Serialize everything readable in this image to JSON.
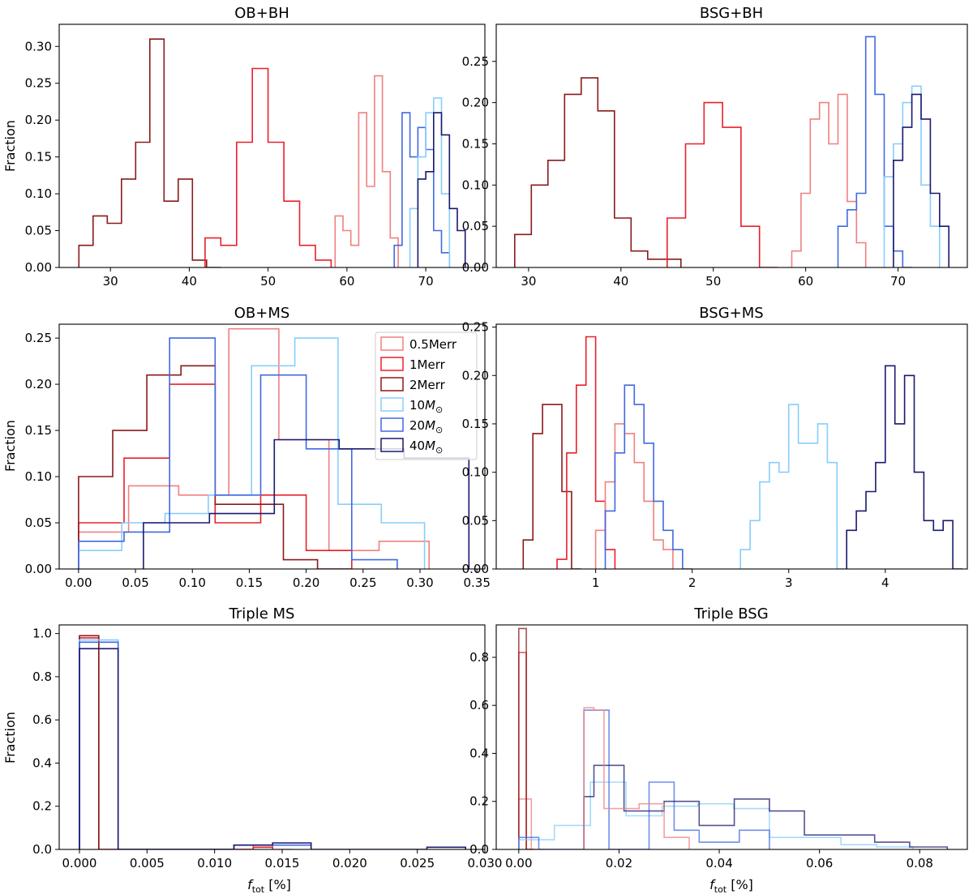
{
  "series_styles": [
    {
      "key": "m05",
      "name": "0.5Merr",
      "color": "#f08080",
      "opacity": 1.0
    },
    {
      "key": "m1",
      "name": "1Merr",
      "color": "#e8202a",
      "opacity": 1.0
    },
    {
      "key": "m2",
      "name": "2Merr",
      "color": "#8b1a1a",
      "opacity": 1.0
    },
    {
      "key": "s10",
      "name": "10",
      "color": "#87cefa",
      "opacity": 1.0
    },
    {
      "key": "s20",
      "name": "20",
      "color": "#4169e1",
      "opacity": 1.0
    },
    {
      "key": "s40",
      "name": "40",
      "color": "#191970",
      "opacity": 1.0
    }
  ],
  "legend": {
    "entries": [
      {
        "key": "m05",
        "main": "0.5Merr",
        "unit": ""
      },
      {
        "key": "m1",
        "main": "1Merr",
        "unit": ""
      },
      {
        "key": "m2",
        "main": "2Merr",
        "unit": ""
      },
      {
        "key": "s10",
        "main": "10",
        "unit": "M"
      },
      {
        "key": "s20",
        "main": "20",
        "unit": "M"
      },
      {
        "key": "s40",
        "main": "40",
        "unit": "M"
      }
    ],
    "unit_subscript": "⊙",
    "placement": "upper-right of OB+MS"
  },
  "chart_data": [
    {
      "type": "histogram-step",
      "title": "OB+BH",
      "ylabel": "Fraction",
      "xlabel": "",
      "xlim": [
        23.5,
        77.5
      ],
      "ylim": [
        0,
        0.33
      ],
      "xticks": [
        30,
        40,
        50,
        60,
        70
      ],
      "yticks": [
        0.0,
        0.05,
        0.1,
        0.15,
        0.2,
        0.25,
        0.3
      ],
      "ytick_labels": [
        "0.00",
        "0.05",
        "0.10",
        "0.15",
        "0.20",
        "0.25",
        "0.30"
      ],
      "xtick_labels": [
        "30",
        "40",
        "50",
        "60",
        "70"
      ],
      "series": [
        {
          "key": "m2",
          "edges": [
            26,
            27.8,
            29.6,
            31.4,
            33.2,
            35,
            36.8,
            38.6,
            40.4,
            42.2,
            44
          ],
          "values": [
            0.03,
            0.07,
            0.06,
            0.12,
            0.17,
            0.31,
            0.09,
            0.12,
            0.01,
            0.0
          ]
        },
        {
          "key": "m1",
          "edges": [
            42,
            44,
            46,
            48,
            50,
            52,
            54,
            56,
            58
          ],
          "values": [
            0.04,
            0.03,
            0.17,
            0.27,
            0.17,
            0.09,
            0.03,
            0.01
          ]
        },
        {
          "key": "m05",
          "edges": [
            58.5,
            59.5,
            60.5,
            61.5,
            62.5,
            63.5,
            64.5,
            65.5,
            66.5
          ],
          "values": [
            0.07,
            0.05,
            0.03,
            0.21,
            0.11,
            0.26,
            0.13,
            0.04
          ]
        },
        {
          "key": "s20",
          "edges": [
            66,
            67,
            68,
            69,
            70,
            71,
            72,
            73
          ],
          "values": [
            0.03,
            0.21,
            0.15,
            0.19,
            0.16,
            0.05,
            0.02
          ]
        },
        {
          "key": "s10",
          "edges": [
            68,
            69,
            70,
            71,
            72,
            73
          ],
          "values": [
            0.08,
            0.15,
            0.21,
            0.23,
            0.1
          ]
        },
        {
          "key": "s40",
          "edges": [
            69,
            70,
            71,
            72,
            73,
            74,
            75
          ],
          "values": [
            0.12,
            0.13,
            0.21,
            0.18,
            0.08,
            0.05
          ]
        }
      ]
    },
    {
      "type": "histogram-step",
      "title": "BSG+BH",
      "ylabel": "",
      "xlabel": "",
      "xlim": [
        26.5,
        77.5
      ],
      "ylim": [
        0,
        0.295
      ],
      "xticks": [
        30,
        40,
        50,
        60,
        70
      ],
      "yticks": [
        0.0,
        0.05,
        0.1,
        0.15,
        0.2,
        0.25
      ],
      "ytick_labels": [
        "0.00",
        "0.05",
        "0.10",
        "0.15",
        "0.20",
        "0.25"
      ],
      "xtick_labels": [
        "30",
        "40",
        "50",
        "60",
        "70"
      ],
      "series": [
        {
          "key": "m2",
          "edges": [
            28.5,
            30.3,
            32.1,
            33.9,
            35.7,
            37.5,
            39.3,
            41.1,
            42.9,
            44.7,
            46.5
          ],
          "values": [
            0.04,
            0.1,
            0.13,
            0.21,
            0.23,
            0.19,
            0.06,
            0.02,
            0.01,
            0.01
          ]
        },
        {
          "key": "m1",
          "edges": [
            45,
            47,
            49,
            51,
            53,
            55,
            57
          ],
          "values": [
            0.06,
            0.15,
            0.2,
            0.17,
            0.05,
            0.0
          ]
        },
        {
          "key": "m05",
          "edges": [
            58.5,
            59.5,
            60.5,
            61.5,
            62.5,
            63.5,
            64.5,
            65.5,
            66.5
          ],
          "values": [
            0.02,
            0.09,
            0.18,
            0.2,
            0.15,
            0.21,
            0.08,
            0.03
          ]
        },
        {
          "key": "s20",
          "edges": [
            63.5,
            64.5,
            65.5,
            66.5,
            67.5,
            68.5,
            69.5,
            70.5,
            71.5
          ],
          "values": [
            0.05,
            0.07,
            0.09,
            0.28,
            0.21,
            0.05,
            0.02,
            0.0
          ]
        },
        {
          "key": "s10",
          "edges": [
            68.5,
            69.5,
            70.5,
            71.5,
            72.5,
            73.5,
            74.5
          ],
          "values": [
            0.11,
            0.15,
            0.2,
            0.22,
            0.1,
            0.05
          ]
        },
        {
          "key": "s40",
          "edges": [
            69.5,
            70.5,
            71.5,
            72.5,
            73.5,
            74.5,
            75.5
          ],
          "values": [
            0.13,
            0.17,
            0.21,
            0.18,
            0.09,
            0.05
          ]
        }
      ]
    },
    {
      "type": "histogram-step",
      "title": "OB+MS",
      "ylabel": "Fraction",
      "xlabel": "",
      "xlim": [
        -0.017,
        0.357
      ],
      "ylim": [
        0,
        0.265
      ],
      "xticks": [
        0.0,
        0.05,
        0.1,
        0.15,
        0.2,
        0.25,
        0.3,
        0.35
      ],
      "yticks": [
        0.0,
        0.05,
        0.1,
        0.15,
        0.2,
        0.25
      ],
      "ytick_labels": [
        "0.00",
        "0.05",
        "0.10",
        "0.15",
        "0.20",
        "0.25"
      ],
      "xtick_labels": [
        "0.00",
        "0.05",
        "0.10",
        "0.15",
        "0.20",
        "0.25",
        "0.30",
        "0.35"
      ],
      "series": [
        {
          "key": "m05",
          "edges": [
            0.0,
            0.044,
            0.088,
            0.132,
            0.176,
            0.22,
            0.264,
            0.308
          ],
          "values": [
            0.04,
            0.09,
            0.08,
            0.26,
            0.14,
            0.02,
            0.03
          ]
        },
        {
          "key": "m1",
          "edges": [
            0.0,
            0.04,
            0.08,
            0.12,
            0.16,
            0.2,
            0.24
          ],
          "values": [
            0.05,
            0.12,
            0.2,
            0.05,
            0.08,
            0.02
          ]
        },
        {
          "key": "m2",
          "edges": [
            0.0,
            0.03,
            0.06,
            0.09,
            0.12,
            0.15,
            0.18,
            0.21,
            0.24
          ],
          "values": [
            0.1,
            0.15,
            0.21,
            0.22,
            0.07,
            0.07,
            0.01,
            0.0
          ]
        },
        {
          "key": "s10",
          "edges": [
            0.0,
            0.038,
            0.076,
            0.114,
            0.152,
            0.19,
            0.228,
            0.266,
            0.304
          ],
          "values": [
            0.02,
            0.05,
            0.06,
            0.08,
            0.22,
            0.25,
            0.07,
            0.05
          ]
        },
        {
          "key": "s20",
          "edges": [
            0.0,
            0.04,
            0.08,
            0.12,
            0.16,
            0.2,
            0.24,
            0.28
          ],
          "values": [
            0.03,
            0.04,
            0.25,
            0.08,
            0.21,
            0.13,
            0.01
          ]
        },
        {
          "key": "s40",
          "edges": [
            0.057,
            0.115,
            0.172,
            0.229,
            0.286,
            0.343
          ],
          "values": [
            0.05,
            0.06,
            0.14,
            0.13,
            0.12
          ]
        }
      ]
    },
    {
      "type": "histogram-step",
      "title": "BSG+MS",
      "ylabel": "",
      "xlabel": "",
      "xlim": [
        -0.03,
        4.85
      ],
      "ylim": [
        0,
        0.253
      ],
      "xticks": [
        1,
        2,
        3,
        4
      ],
      "yticks": [
        0.0,
        0.05,
        0.1,
        0.15,
        0.2,
        0.25
      ],
      "ytick_labels": [
        "0.00",
        "0.05",
        "0.10",
        "0.15",
        "0.20",
        "0.25"
      ],
      "xtick_labels": [
        "1",
        "2",
        "3",
        "4"
      ],
      "series": [
        {
          "key": "m2",
          "edges": [
            0.25,
            0.35,
            0.45,
            0.55,
            0.65,
            0.75,
            0.85
          ],
          "values": [
            0.03,
            0.14,
            0.17,
            0.17,
            0.08,
            0.0
          ]
        },
        {
          "key": "m1",
          "edges": [
            0.6,
            0.7,
            0.8,
            0.9,
            1.0,
            1.1,
            1.2
          ],
          "values": [
            0.01,
            0.12,
            0.19,
            0.24,
            0.07,
            0.02
          ]
        },
        {
          "key": "m05",
          "edges": [
            1.0,
            1.1,
            1.2,
            1.3,
            1.4,
            1.5,
            1.6,
            1.7,
            1.8
          ],
          "values": [
            0.04,
            0.09,
            0.15,
            0.14,
            0.11,
            0.07,
            0.03,
            0.02
          ]
        },
        {
          "key": "s20",
          "edges": [
            1.1,
            1.2,
            1.3,
            1.4,
            1.5,
            1.6,
            1.7,
            1.8,
            1.9,
            2.0
          ],
          "values": [
            0.06,
            0.12,
            0.19,
            0.17,
            0.13,
            0.07,
            0.04,
            0.02,
            0.0
          ]
        },
        {
          "key": "s10",
          "edges": [
            2.5,
            2.6,
            2.7,
            2.8,
            2.9,
            3.0,
            3.1,
            3.2,
            3.3,
            3.4,
            3.5,
            3.6
          ],
          "values": [
            0.02,
            0.05,
            0.09,
            0.11,
            0.1,
            0.17,
            0.13,
            0.13,
            0.15,
            0.11,
            0.0
          ]
        },
        {
          "key": "s40",
          "edges": [
            3.6,
            3.7,
            3.8,
            3.9,
            4.0,
            4.1,
            4.2,
            4.3,
            4.4,
            4.5,
            4.6,
            4.7,
            4.8
          ],
          "values": [
            0.04,
            0.06,
            0.08,
            0.11,
            0.21,
            0.15,
            0.2,
            0.1,
            0.05,
            0.04,
            0.05,
            0.0
          ]
        }
      ]
    },
    {
      "type": "histogram-step",
      "title": "Triple MS",
      "ylabel": "Fraction",
      "xlabel": "f_tot [%]",
      "xlim": [
        -0.0015,
        0.03
      ],
      "ylim": [
        0,
        1.04
      ],
      "xticks": [
        0.0,
        0.005,
        0.01,
        0.015,
        0.02,
        0.025,
        0.03
      ],
      "yticks": [
        0.0,
        0.2,
        0.4,
        0.6,
        0.8,
        1.0
      ],
      "ytick_labels": [
        "0.0",
        "0.2",
        "0.4",
        "0.6",
        "0.8",
        "1.0"
      ],
      "xtick_labels": [
        "0.000",
        "0.005",
        "0.010",
        "0.015",
        "0.020",
        "0.025",
        "0.030"
      ],
      "series": [
        {
          "key": "m05",
          "edges": [
            0.0,
            0.00143,
            0.01286,
            0.01429,
            0.01571
          ],
          "values": [
            0.98,
            0.0,
            0.02,
            0.0
          ]
        },
        {
          "key": "m1",
          "edges": [
            0.0,
            0.00143,
            0.01286,
            0.01429
          ],
          "values": [
            0.98,
            0.0,
            0.01
          ]
        },
        {
          "key": "m2",
          "edges": [
            0.0,
            0.00143
          ],
          "values": [
            0.99
          ]
        },
        {
          "key": "s10",
          "edges": [
            0.0,
            0.00143,
            0.00286
          ],
          "values": [
            0.97,
            0.97
          ]
        },
        {
          "key": "s20",
          "edges": [
            0.0,
            0.00286,
            0.01143,
            0.01429,
            0.01714
          ],
          "values": [
            0.96,
            0.0,
            0.02,
            0.02
          ]
        },
        {
          "key": "s40",
          "edges": [
            0.0,
            0.00286,
            0.01143,
            0.01429,
            0.01714,
            0.02571,
            0.02857
          ],
          "values": [
            0.93,
            0.0,
            0.02,
            0.03,
            0.0,
            0.01
          ]
        }
      ]
    },
    {
      "type": "histogram-step",
      "title": "Triple BSG",
      "ylabel": "",
      "xlabel": "f_tot [%]",
      "xlim": [
        -0.0045,
        0.0895
      ],
      "ylim": [
        0,
        0.935
      ],
      "xticks": [
        0.0,
        0.02,
        0.04,
        0.06,
        0.08
      ],
      "yticks": [
        0.0,
        0.2,
        0.4,
        0.6,
        0.8
      ],
      "ytick_labels": [
        "0.0",
        "0.2",
        "0.4",
        "0.6",
        "0.8"
      ],
      "xtick_labels": [
        "0.00",
        "0.02",
        "0.04",
        "0.06",
        "0.08"
      ],
      "series": [
        {
          "key": "m05",
          "edges": [
            0.0,
            0.0025,
            0.005
          ],
          "values": [
            0.21,
            0.0
          ]
        },
        {
          "key": "m1",
          "edges": [
            0.0,
            0.0015,
            0.003
          ],
          "values": [
            0.82,
            0.0
          ]
        },
        {
          "key": "m2",
          "edges": [
            0.0,
            0.0015,
            0.003
          ],
          "values": [
            0.92,
            0.0
          ]
        },
        {
          "key": "s10",
          "edges": [
            0.0,
            0.0071,
            0.0143,
            0.0214,
            0.0286,
            0.0357,
            0.0429,
            0.05,
            0.0571,
            0.0643,
            0.0714,
            0.0786
          ],
          "values": [
            0.04,
            0.1,
            0.28,
            0.14,
            0.18,
            0.19,
            0.17,
            0.05,
            0.05,
            0.02,
            0.01
          ]
        },
        {
          "key": "s20",
          "edges": [
            0.0,
            0.004,
            0.013,
            0.018,
            0.026,
            0.031,
            0.036,
            0.044,
            0.05
          ],
          "values": [
            0.05,
            0.0,
            0.58,
            0.0,
            0.28,
            0.08,
            0.03,
            0.08
          ]
        },
        {
          "key": "s40",
          "edges": [
            0.013,
            0.015,
            0.021,
            0.029,
            0.036,
            0.043,
            0.05,
            0.057,
            0.064,
            0.071,
            0.078,
            0.0855
          ],
          "values": [
            0.22,
            0.35,
            0.16,
            0.2,
            0.1,
            0.21,
            0.16,
            0.06,
            0.06,
            0.03,
            0.01
          ]
        },
        {
          "key": "m05",
          "edges": [
            0.013,
            0.015,
            0.017,
            0.024,
            0.029,
            0.034
          ],
          "values": [
            0.59,
            0.58,
            0.17,
            0.19,
            0.05
          ]
        }
      ]
    }
  ]
}
